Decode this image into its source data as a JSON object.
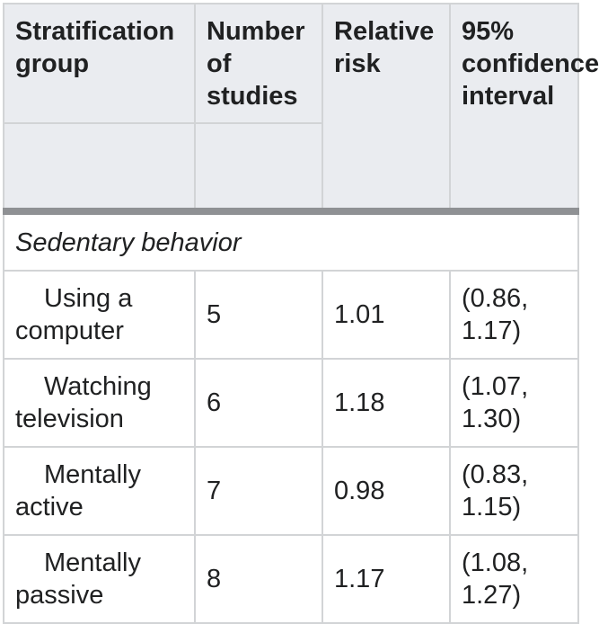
{
  "header": {
    "col1": "Stratification group",
    "col2": "Number of studies",
    "col3": "Relative risk",
    "col4": "95% confidence interval"
  },
  "group": {
    "title": "Sedentary behavior"
  },
  "rows": [
    {
      "label": "Using a computer",
      "studies": "5",
      "rr": "1.01",
      "ci": "(0.86,\n1.17)"
    },
    {
      "label": "Watching television",
      "studies": "6",
      "rr": "1.18",
      "ci": "(1.07,\n1.30)"
    },
    {
      "label": "Mentally active",
      "studies": "7",
      "rr": "0.98",
      "ci": "(0.83,\n1.15)"
    },
    {
      "label": "Mentally passive",
      "studies": "8",
      "rr": "1.17",
      "ci": "(1.08,\n1.27)"
    }
  ]
}
